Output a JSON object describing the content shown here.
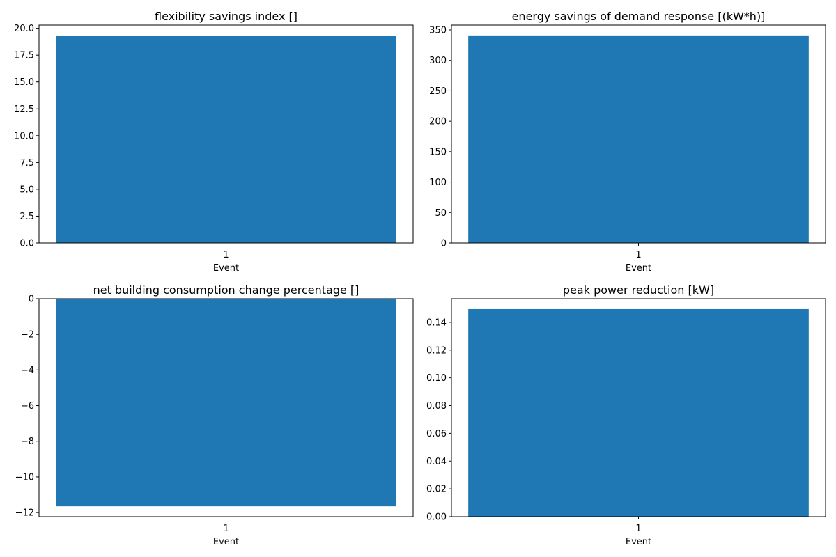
{
  "figure": {
    "bar_color": "#1f77b4",
    "background": "#ffffff"
  },
  "chart_data": [
    {
      "type": "bar",
      "title": "flexibility savings index []",
      "xlabel": "Event",
      "ylabel": "",
      "categories": [
        "1"
      ],
      "values": [
        19.3
      ],
      "ylim": [
        0,
        20.3
      ],
      "yticks": [
        0.0,
        2.5,
        5.0,
        7.5,
        10.0,
        12.5,
        15.0,
        17.5,
        20.0
      ],
      "ytick_labels": [
        "0.0",
        "2.5",
        "5.0",
        "7.5",
        "10.0",
        "12.5",
        "15.0",
        "17.5",
        "20.0"
      ]
    },
    {
      "type": "bar",
      "title": "energy savings of demand response [(kW*h)]",
      "xlabel": "Event",
      "ylabel": "",
      "categories": [
        "1"
      ],
      "values": [
        341
      ],
      "ylim": [
        0,
        358
      ],
      "yticks": [
        0,
        50,
        100,
        150,
        200,
        250,
        300,
        350
      ],
      "ytick_labels": [
        "0",
        "50",
        "100",
        "150",
        "200",
        "250",
        "300",
        "350"
      ]
    },
    {
      "type": "bar",
      "title": "net building consumption change percentage []",
      "xlabel": "Event",
      "ylabel": "",
      "categories": [
        "1"
      ],
      "values": [
        -11.65
      ],
      "ylim": [
        -12.23,
        0
      ],
      "yticks": [
        0,
        -2,
        -4,
        -6,
        -8,
        -10,
        -12
      ],
      "ytick_labels": [
        "0",
        "−2",
        "−4",
        "−6",
        "−8",
        "−10",
        "−12"
      ]
    },
    {
      "type": "bar",
      "title": "peak power reduction [kW]",
      "xlabel": "Event",
      "ylabel": "",
      "categories": [
        "1"
      ],
      "values": [
        0.1495
      ],
      "ylim": [
        0,
        0.157
      ],
      "yticks": [
        0.0,
        0.02,
        0.04,
        0.06,
        0.08,
        0.1,
        0.12,
        0.14
      ],
      "ytick_labels": [
        "0.00",
        "0.02",
        "0.04",
        "0.06",
        "0.08",
        "0.10",
        "0.12",
        "0.14"
      ]
    }
  ]
}
